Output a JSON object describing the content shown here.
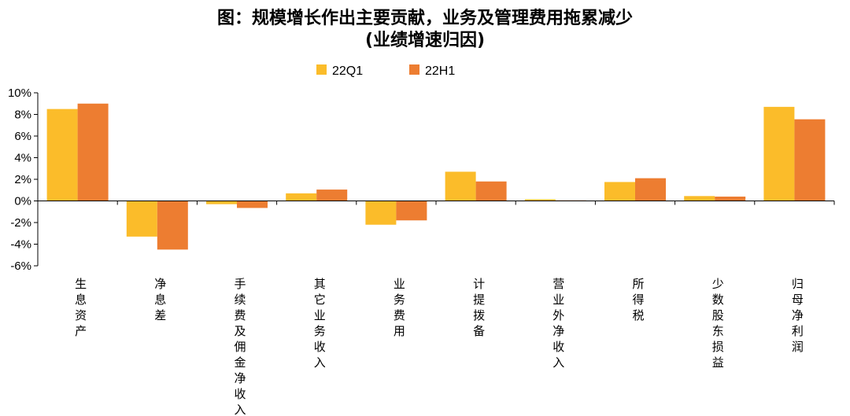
{
  "chart_data": {
    "type": "bar",
    "title": "图：规模增长作出主要贡献，业务及管理费用拖累减少",
    "subtitle": "(业绩增速归因)",
    "xlabel": "",
    "ylabel": "",
    "categories": [
      "生息资产",
      "净息差",
      "手续费及佣金净收入",
      "其它业务收入",
      "业务费用",
      "计提拨备",
      "营业外净收入",
      "所得税",
      "少数股东损益",
      "归母净利润"
    ],
    "series": [
      {
        "name": "22Q1",
        "color": "#FBBC2A",
        "values": [
          8.5,
          -3.3,
          -0.3,
          0.7,
          -2.2,
          2.7,
          0.15,
          1.75,
          0.45,
          8.7
        ]
      },
      {
        "name": "22H1",
        "color": "#ED7D31",
        "values": [
          9.0,
          -4.5,
          -0.65,
          1.05,
          -1.8,
          1.8,
          0.05,
          2.1,
          0.4,
          7.55
        ]
      }
    ],
    "ylim": [
      -6,
      10
    ],
    "yticks": [
      -6,
      -4,
      -2,
      0,
      2,
      4,
      6,
      8,
      10
    ],
    "ytick_labels": [
      "-6%",
      "-4%",
      "-2%",
      "0%",
      "2%",
      "4%",
      "6%",
      "8%",
      "10%"
    ],
    "legend_position": "top-center",
    "grid": false
  }
}
